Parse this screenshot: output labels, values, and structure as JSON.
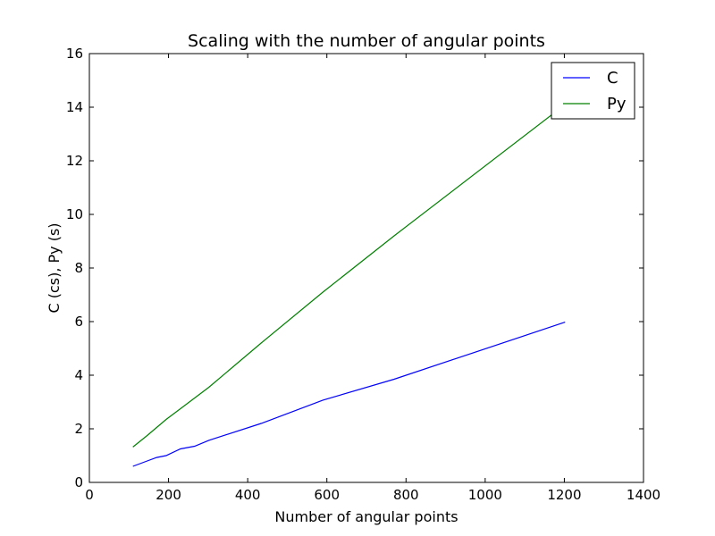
{
  "chart_data": {
    "type": "line",
    "title": "Scaling with the number of angular points",
    "xlabel": "Number of angular points",
    "ylabel": "C (cs), Py (s)",
    "xlim": [
      0,
      1400
    ],
    "ylim": [
      0,
      16
    ],
    "xticks": [
      "0",
      "200",
      "400",
      "600",
      "800",
      "1000",
      "1200",
      "1400"
    ],
    "yticks": [
      "0",
      "2",
      "4",
      "6",
      "8",
      "10",
      "12",
      "14",
      "16"
    ],
    "xtick_values": [
      0,
      200,
      400,
      600,
      800,
      1000,
      1200,
      1400
    ],
    "ytick_values": [
      0,
      2,
      4,
      6,
      8,
      10,
      12,
      14,
      16
    ],
    "grid": false,
    "legend_position": "top-right",
    "series": [
      {
        "name": "C",
        "color": "#0000ff",
        "x": [
          110,
          146,
          170,
          194,
          230,
          266,
          302,
          434,
          590,
          770,
          1202
        ],
        "y": [
          0.6,
          0.8,
          0.93,
          1.0,
          1.25,
          1.35,
          1.57,
          2.2,
          3.07,
          3.85,
          5.98
        ]
      },
      {
        "name": "Py",
        "color": "#008000",
        "x": [
          110,
          146,
          170,
          194,
          230,
          266,
          302,
          434,
          590,
          770,
          1202
        ],
        "y": [
          1.32,
          1.75,
          2.05,
          2.35,
          2.75,
          3.15,
          3.55,
          5.2,
          7.1,
          9.2,
          14.1
        ]
      }
    ]
  }
}
